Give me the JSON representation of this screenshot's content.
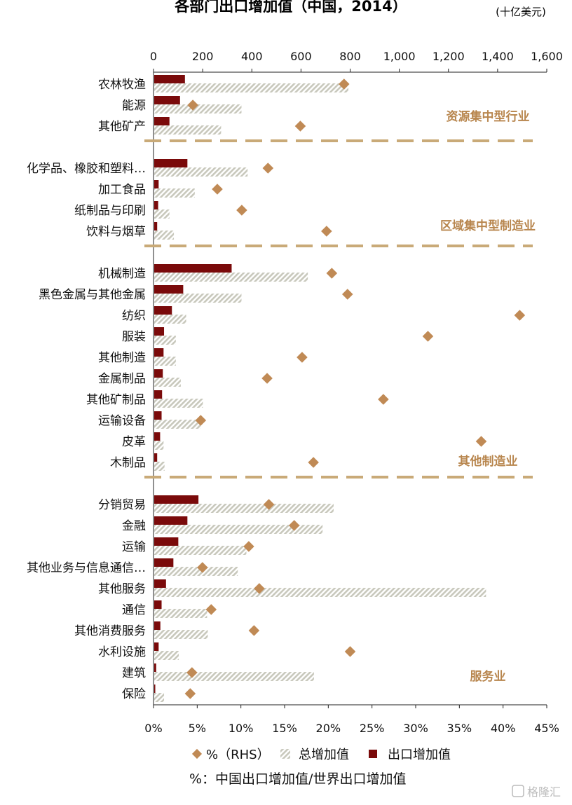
{
  "chart_data": {
    "type": "bar",
    "title": "各部门出口增加值（中国，2014）",
    "unit_note": "(十亿美元)",
    "x_top": {
      "range": [
        0,
        1600
      ],
      "ticks": [
        "0",
        "200",
        "400",
        "600",
        "800",
        "1,000",
        "1,200",
        "1,400",
        "1,600"
      ]
    },
    "x_bottom": {
      "range": [
        0,
        45
      ],
      "ticks": [
        "0%",
        "5%",
        "10%",
        "15%",
        "20%",
        "25%",
        "30%",
        "35%",
        "40%",
        "45%"
      ]
    },
    "groups": [
      {
        "label": "资源集中型行业",
        "categories": [
          {
            "name": "农林牧渔",
            "export_va": 125,
            "total_va": 790,
            "pct": 21.8
          },
          {
            "name": "能源",
            "export_va": 105,
            "total_va": 355,
            "pct": 4.5
          },
          {
            "name": "其他矿产",
            "export_va": 62,
            "total_va": 272,
            "pct": 16.8
          }
        ]
      },
      {
        "label": "区域集中型制造业",
        "categories": [
          {
            "name": "化学品、橡胶和塑料…",
            "export_va": 135,
            "total_va": 380,
            "pct": 13.1
          },
          {
            "name": "加工食品",
            "export_va": 18,
            "total_va": 165,
            "pct": 7.3
          },
          {
            "name": "纸制品与印刷",
            "export_va": 16,
            "total_va": 62,
            "pct": 10.1
          },
          {
            "name": "饮料与烟草",
            "export_va": 12,
            "total_va": 80,
            "pct": 19.8
          }
        ]
      },
      {
        "label": "其他制造业",
        "categories": [
          {
            "name": "机械制造",
            "export_va": 315,
            "total_va": 625,
            "pct": 20.4
          },
          {
            "name": "黑色金属与其他金属",
            "export_va": 118,
            "total_va": 355,
            "pct": 22.2
          },
          {
            "name": "纺织",
            "export_va": 72,
            "total_va": 130,
            "pct": 41.9
          },
          {
            "name": "服装",
            "export_va": 40,
            "total_va": 88,
            "pct": 31.4
          },
          {
            "name": "其他制造",
            "export_va": 38,
            "total_va": 88,
            "pct": 17.0
          },
          {
            "name": "金属制品",
            "export_va": 35,
            "total_va": 108,
            "pct": 13.0
          },
          {
            "name": "其他矿制品",
            "export_va": 32,
            "total_va": 198,
            "pct": 26.3
          },
          {
            "name": "运输设备",
            "export_va": 30,
            "total_va": 190,
            "pct": 5.4
          },
          {
            "name": "皮革",
            "export_va": 24,
            "total_va": 38,
            "pct": 37.5
          },
          {
            "name": "木制品",
            "export_va": 12,
            "total_va": 42,
            "pct": 18.3
          }
        ]
      },
      {
        "label": "服务业",
        "categories": [
          {
            "name": "分销贸易",
            "export_va": 180,
            "total_va": 730,
            "pct": 13.2
          },
          {
            "name": "金融",
            "export_va": 135,
            "total_va": 685,
            "pct": 16.1
          },
          {
            "name": "运输",
            "export_va": 98,
            "total_va": 375,
            "pct": 10.9
          },
          {
            "name": "其他业务与信息通信…",
            "export_va": 78,
            "total_va": 340,
            "pct": 5.6
          },
          {
            "name": "其他服务",
            "export_va": 48,
            "total_va": 1350,
            "pct": 12.1
          },
          {
            "name": "通信",
            "export_va": 30,
            "total_va": 215,
            "pct": 6.6
          },
          {
            "name": "其他消费服务",
            "export_va": 25,
            "total_va": 218,
            "pct": 11.5
          },
          {
            "name": "水利设施",
            "export_va": 18,
            "total_va": 100,
            "pct": 22.5
          },
          {
            "name": "建筑",
            "export_va": 8,
            "total_va": 650,
            "pct": 4.4
          },
          {
            "name": "保险",
            "export_va": 4,
            "total_va": 40,
            "pct": 4.2
          }
        ]
      }
    ],
    "legend": {
      "pct": "%（RHS）",
      "total": "总增加值",
      "export": "出口增加值"
    },
    "footnote": "%：中国出口增加值/世界出口增加值",
    "watermark": "格隆汇",
    "colors": {
      "export": "#7A0A0A",
      "total_hatch": "#C8C8BC",
      "diamond": "#C08A55",
      "group_label": "#B8864E",
      "separator": "#C9AA78"
    }
  }
}
